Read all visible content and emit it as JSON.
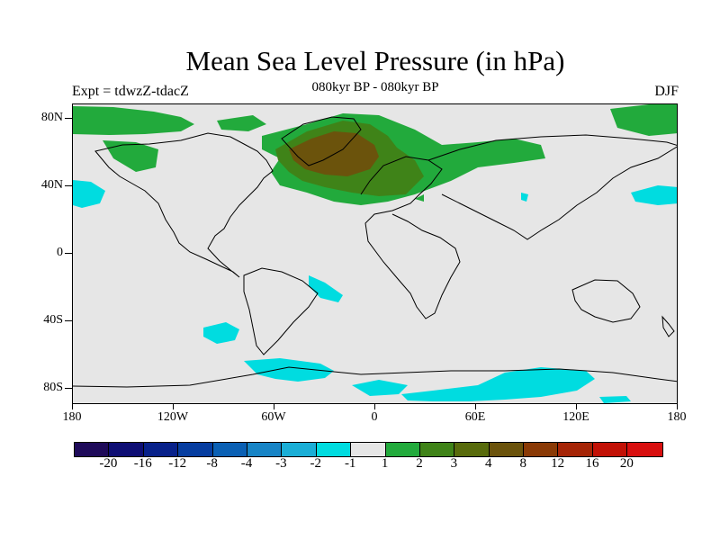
{
  "title": "Mean Sea Level Pressure (in hPa)",
  "subtitle": "080kyr BP - 080kyr BP",
  "experiment": "Expt = tdwzZ-tdacZ",
  "season": "DJF",
  "axes": {
    "lat_labels": [
      "80N",
      "40N",
      "0",
      "40S",
      "80S"
    ],
    "lon_labels": [
      "180",
      "120W",
      "60W",
      "0",
      "60E",
      "120E",
      "180"
    ]
  },
  "colorbar": {
    "colors": [
      "#1f0b5a",
      "#0e0e74",
      "#08218a",
      "#063da0",
      "#0b60b4",
      "#1784c6",
      "#1aaed6",
      "#00dce0",
      "#e6e6e6",
      "#22aa3c",
      "#3f8318",
      "#586b0c",
      "#6b530c",
      "#8a3a06",
      "#a52406",
      "#c21106",
      "#d80f0f"
    ],
    "labels": [
      "-20",
      "-16",
      "-12",
      "-8",
      "-4",
      "-3",
      "-2",
      "-1",
      "1",
      "2",
      "3",
      "4",
      "8",
      "12",
      "16",
      "20"
    ]
  },
  "colors": {
    "background": "#e6e6e6",
    "positive_1_2": "#22aa3c",
    "positive_2_3": "#3f8318",
    "positive_4_8": "#6b530c",
    "negative_1_2": "#00dce0"
  }
}
